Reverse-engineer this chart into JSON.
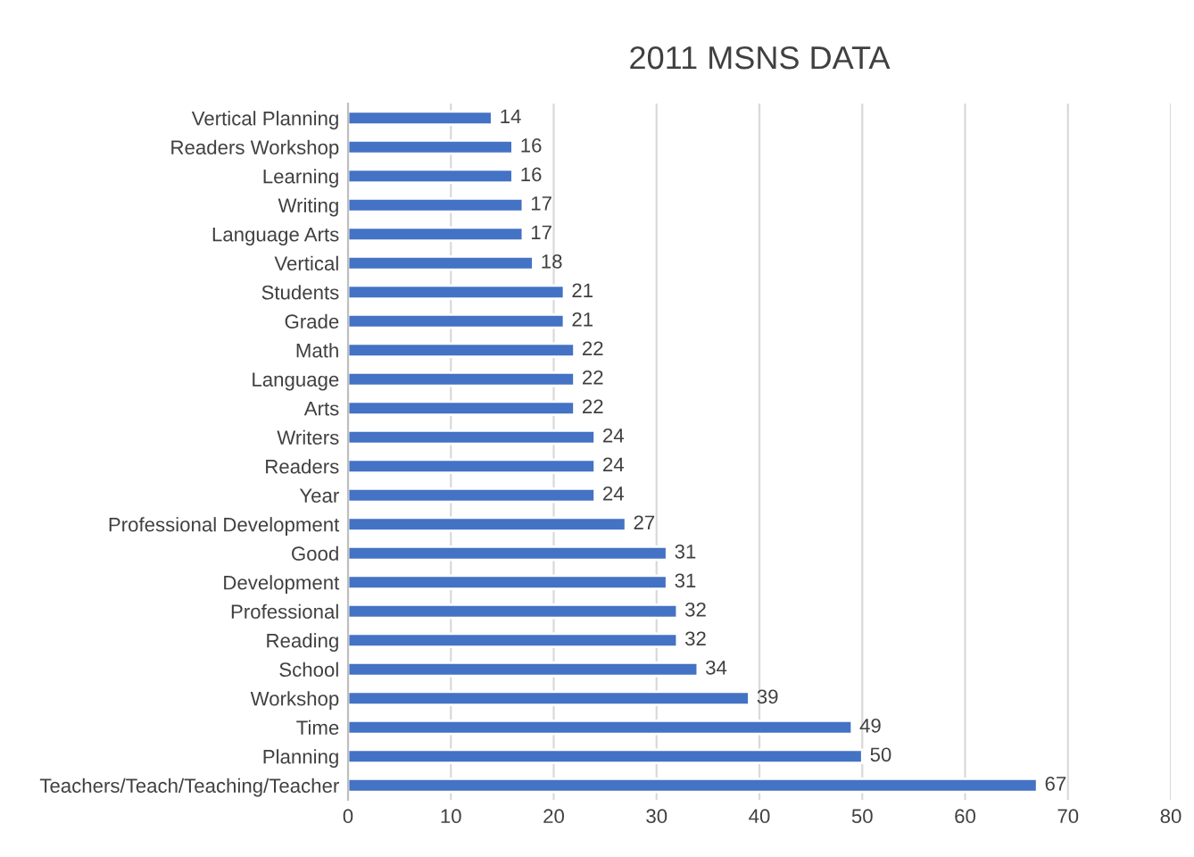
{
  "chart_data": {
    "type": "bar",
    "orientation": "horizontal",
    "title": "2011 MSNS DATA",
    "categories": [
      "Vertical Planning",
      "Readers Workshop",
      "Learning",
      "Writing",
      "Language Arts",
      "Vertical",
      "Students",
      "Grade",
      "Math",
      "Language",
      "Arts",
      "Writers",
      "Readers",
      "Year",
      "Professional Development",
      "Good",
      "Development",
      "Professional",
      "Reading",
      "School",
      "Workshop",
      "Time",
      "Planning",
      "Teachers/Teach/Teaching/Teacher"
    ],
    "values": [
      14,
      16,
      16,
      17,
      17,
      18,
      21,
      21,
      22,
      22,
      22,
      24,
      24,
      24,
      27,
      31,
      31,
      32,
      32,
      34,
      39,
      49,
      50,
      67
    ],
    "color": "#4472c4",
    "xlim": [
      0,
      80
    ],
    "xticks": [
      0,
      10,
      20,
      30,
      40,
      50,
      60,
      70,
      80
    ],
    "grid": "x",
    "data_labels": true
  }
}
